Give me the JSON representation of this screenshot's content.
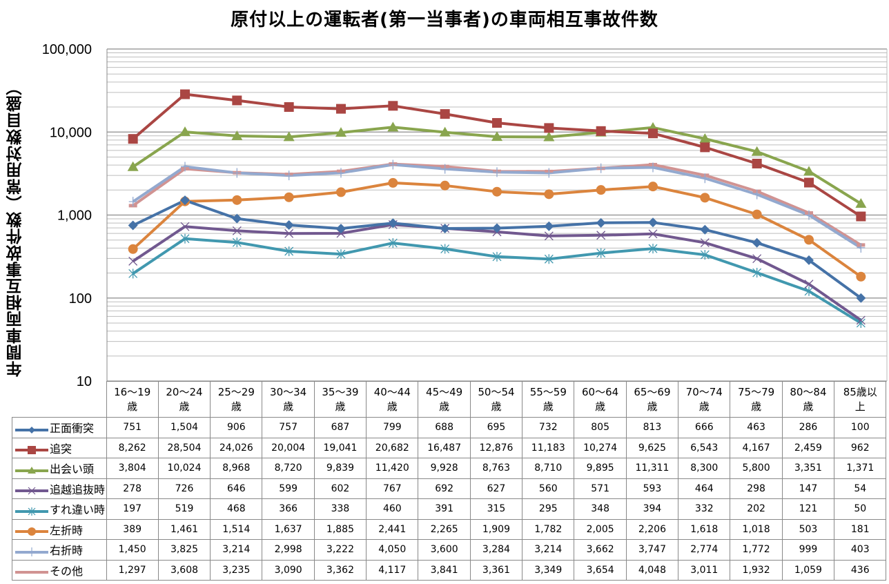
{
  "chart_data": {
    "type": "line",
    "title": "原付以上の運転者(第一当事者)の車両相互事故件数",
    "ylabel": "年間車両相互事故件数（常用対数目盛）",
    "xlabel": "",
    "yscale": "log",
    "ylim": [
      10,
      100000
    ],
    "grid": true,
    "legend": "table-left",
    "yticks": [
      "100,000",
      "10,000",
      "1,000",
      "100",
      "10"
    ],
    "categories": [
      [
        "16～19",
        "歳"
      ],
      [
        "20～24",
        "歳"
      ],
      [
        "25～29",
        "歳"
      ],
      [
        "30～34",
        "歳"
      ],
      [
        "35～39",
        "歳"
      ],
      [
        "40～44",
        "歳"
      ],
      [
        "45～49",
        "歳"
      ],
      [
        "50～54",
        "歳"
      ],
      [
        "55～59",
        "歳"
      ],
      [
        "60～64",
        "歳"
      ],
      [
        "65～69",
        "歳"
      ],
      [
        "70～74",
        "歳"
      ],
      [
        "75～79",
        "歳"
      ],
      [
        "80～84",
        "歳"
      ],
      [
        "85歳以",
        "上"
      ]
    ],
    "series": [
      {
        "name": "正面衝突",
        "color": "#4572A7",
        "marker": "diamond",
        "values": [
          751,
          1504,
          906,
          757,
          687,
          799,
          688,
          695,
          732,
          805,
          813,
          666,
          463,
          286,
          100
        ],
        "labels": [
          "751",
          "1,504",
          "906",
          "757",
          "687",
          "799",
          "688",
          "695",
          "732",
          "805",
          "813",
          "666",
          "463",
          "286",
          "100"
        ]
      },
      {
        "name": "追突",
        "color": "#AA4643",
        "marker": "square",
        "values": [
          8262,
          28504,
          24026,
          20004,
          19041,
          20682,
          16487,
          12876,
          11183,
          10274,
          9625,
          6543,
          4167,
          2459,
          962
        ],
        "labels": [
          "8,262",
          "28,504",
          "24,026",
          "20,004",
          "19,041",
          "20,682",
          "16,487",
          "12,876",
          "11,183",
          "10,274",
          "9,625",
          "6,543",
          "4,167",
          "2,459",
          "962"
        ]
      },
      {
        "name": "出会い頭",
        "color": "#89A54E",
        "marker": "triangle",
        "values": [
          3804,
          10024,
          8968,
          8720,
          9839,
          11420,
          9928,
          8763,
          8710,
          9895,
          11311,
          8300,
          5800,
          3351,
          1371
        ],
        "labels": [
          "3,804",
          "10,024",
          "8,968",
          "8,720",
          "9,839",
          "11,420",
          "9,928",
          "8,763",
          "8,710",
          "9,895",
          "11,311",
          "8,300",
          "5,800",
          "3,351",
          "1,371"
        ]
      },
      {
        "name": "追越追抜時",
        "color": "#71588F",
        "marker": "x",
        "values": [
          278,
          726,
          646,
          599,
          602,
          767,
          692,
          627,
          560,
          571,
          593,
          464,
          298,
          147,
          54
        ],
        "labels": [
          "278",
          "726",
          "646",
          "599",
          "602",
          "767",
          "692",
          "627",
          "560",
          "571",
          "593",
          "464",
          "298",
          "147",
          "54"
        ]
      },
      {
        "name": "すれ違い時",
        "color": "#4198AF",
        "marker": "star",
        "values": [
          197,
          519,
          468,
          366,
          338,
          460,
          391,
          315,
          295,
          348,
          394,
          332,
          202,
          121,
          50
        ],
        "labels": [
          "197",
          "519",
          "468",
          "366",
          "338",
          "460",
          "391",
          "315",
          "295",
          "348",
          "394",
          "332",
          "202",
          "121",
          "50"
        ]
      },
      {
        "name": "左折時",
        "color": "#DB843D",
        "marker": "circle",
        "values": [
          389,
          1461,
          1514,
          1637,
          1885,
          2441,
          2265,
          1909,
          1782,
          2005,
          2206,
          1618,
          1018,
          503,
          181
        ],
        "labels": [
          "389",
          "1,461",
          "1,514",
          "1,637",
          "1,885",
          "2,441",
          "2,265",
          "1,909",
          "1,782",
          "2,005",
          "2,206",
          "1,618",
          "1,018",
          "503",
          "181"
        ]
      },
      {
        "name": "右折時",
        "color": "#93A9CF",
        "marker": "plus",
        "values": [
          1450,
          3825,
          3214,
          2998,
          3222,
          4050,
          3600,
          3284,
          3214,
          3662,
          3747,
          2774,
          1772,
          999,
          403
        ],
        "labels": [
          "1,450",
          "3,825",
          "3,214",
          "2,998",
          "3,222",
          "4,050",
          "3,600",
          "3,284",
          "3,214",
          "3,662",
          "3,747",
          "2,774",
          "1,772",
          "999",
          "403"
        ]
      },
      {
        "name": "その他",
        "color": "#D19392",
        "marker": "dash",
        "values": [
          1297,
          3608,
          3235,
          3090,
          3362,
          4117,
          3841,
          3361,
          3349,
          3654,
          4048,
          3011,
          1932,
          1059,
          436
        ],
        "labels": [
          "1,297",
          "3,608",
          "3,235",
          "3,090",
          "3,362",
          "4,117",
          "3,841",
          "3,361",
          "3,349",
          "3,654",
          "4,048",
          "3,011",
          "1,932",
          "1,059",
          "436"
        ]
      }
    ]
  }
}
